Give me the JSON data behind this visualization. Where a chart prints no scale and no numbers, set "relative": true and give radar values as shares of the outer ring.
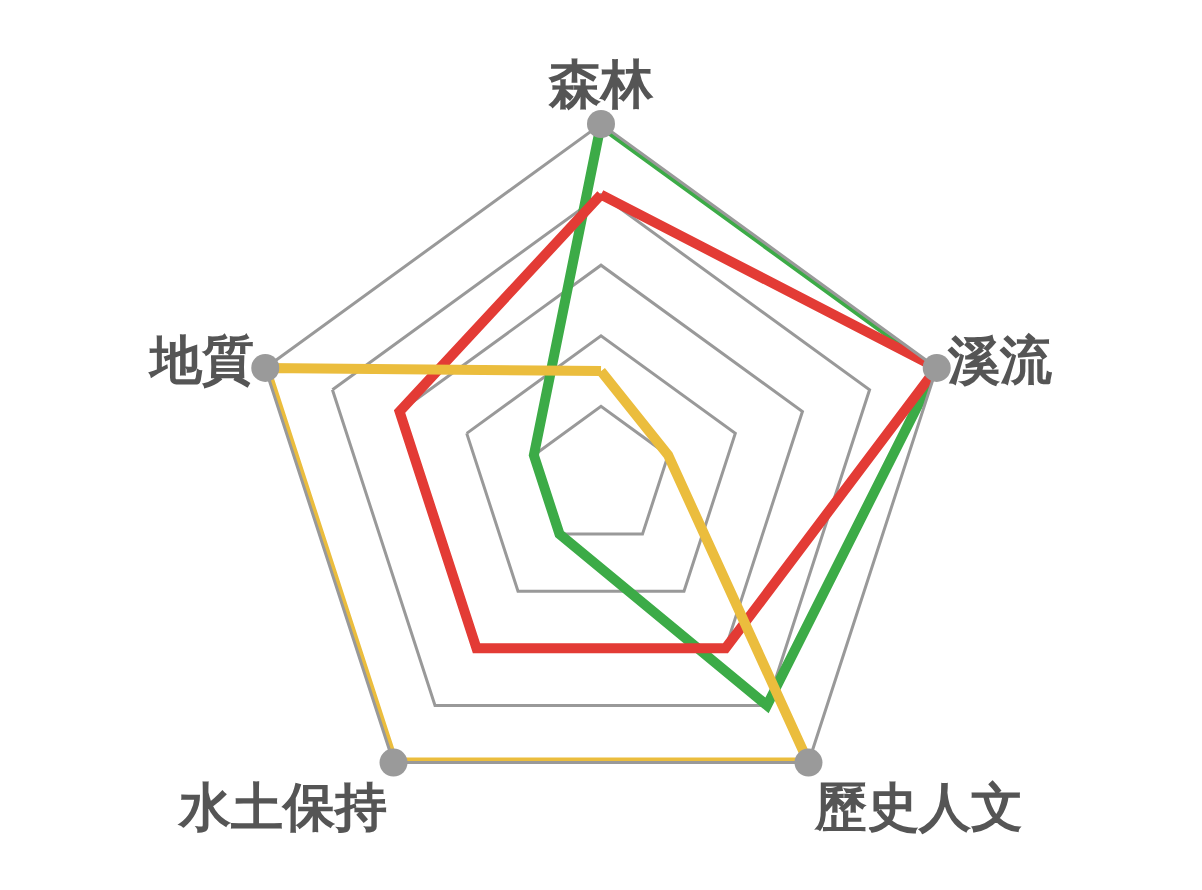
{
  "chart_data": {
    "type": "radar",
    "relative": true,
    "grid": true,
    "categories": [
      "森林",
      "溪流",
      "歷史人文",
      "水土保持",
      "地質"
    ],
    "series": [
      {
        "color": "#3cab47",
        "values": [
          1,
          1,
          0.8,
          0.2,
          0.2
        ]
      },
      {
        "color": "#e33b35",
        "values": [
          0.8,
          1,
          0.6,
          0.6,
          0.6
        ]
      },
      {
        "color": "#ebbd3d",
        "values": [
          0.3,
          0.2,
          1,
          1,
          1
        ]
      }
    ]
  }
}
